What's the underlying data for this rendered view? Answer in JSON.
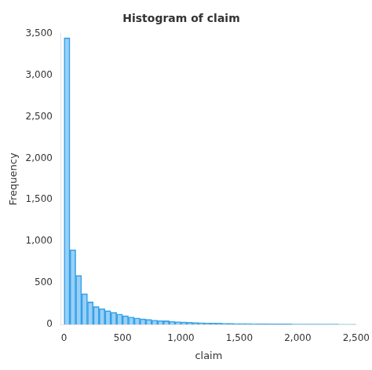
{
  "chart_data": {
    "type": "histogram",
    "title": "Histogram of claim",
    "xlabel": "claim",
    "ylabel": "Frequency",
    "bins": [
      0,
      50,
      100,
      150,
      200,
      250,
      300,
      350,
      400,
      450,
      500,
      550,
      600,
      650,
      700,
      750,
      800,
      850,
      900,
      950,
      1000,
      1050,
      1100,
      1150,
      1200,
      1250,
      1300,
      1350,
      1400,
      1450,
      1500,
      1550,
      1600,
      1650,
      1700,
      1750,
      1800,
      1850,
      1900,
      1950,
      2000,
      2050,
      2100,
      2150,
      2200,
      2250,
      2300,
      2350,
      2400,
      2450,
      2500
    ],
    "values": [
      3450,
      900,
      590,
      370,
      270,
      215,
      190,
      165,
      145,
      125,
      105,
      90,
      78,
      68,
      60,
      52,
      47,
      43,
      38,
      33,
      29,
      26,
      23,
      21,
      19,
      17,
      15,
      14,
      13,
      12,
      11,
      10,
      9,
      8,
      8,
      7,
      7,
      6,
      6,
      5,
      5,
      4,
      4,
      4,
      3,
      3,
      3,
      2,
      2,
      2
    ],
    "xlim": [
      -25,
      2500
    ],
    "ylim": [
      0,
      3500
    ],
    "xticks": [
      0,
      500,
      1000,
      1500,
      2000,
      2500
    ],
    "yticks": [
      0,
      500,
      1000,
      1500,
      2000,
      2500,
      3000,
      3500
    ],
    "grid": false
  }
}
